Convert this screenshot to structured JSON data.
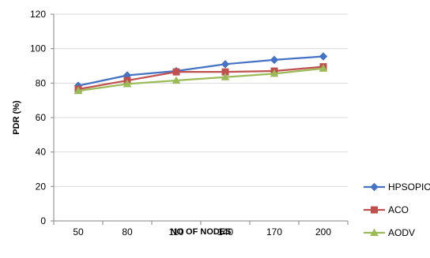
{
  "chart_data": {
    "type": "line",
    "title": "",
    "xlabel": "NO OF NODES",
    "ylabel": "PDR (%)",
    "categories": [
      "50",
      "80",
      "110",
      "140",
      "170",
      "200"
    ],
    "ylim": [
      0,
      120
    ],
    "yticks": [
      "0",
      "20",
      "40",
      "60",
      "80",
      "100",
      "120"
    ],
    "grid": true,
    "legend_position": "right",
    "series": [
      {
        "name": "HPSOPIO",
        "color": "#4472C4",
        "marker": "diamond",
        "values": [
          78.5,
          84.5,
          87,
          91,
          93.5,
          95.5
        ]
      },
      {
        "name": "ACO",
        "color": "#C0504D",
        "marker": "square",
        "values": [
          76.5,
          81.5,
          86.5,
          86.5,
          87,
          89.5
        ]
      },
      {
        "name": "AODV",
        "color": "#9BBB59",
        "marker": "triangle",
        "values": [
          75.5,
          79.5,
          81.5,
          83.5,
          85.5,
          88.5
        ]
      }
    ]
  }
}
